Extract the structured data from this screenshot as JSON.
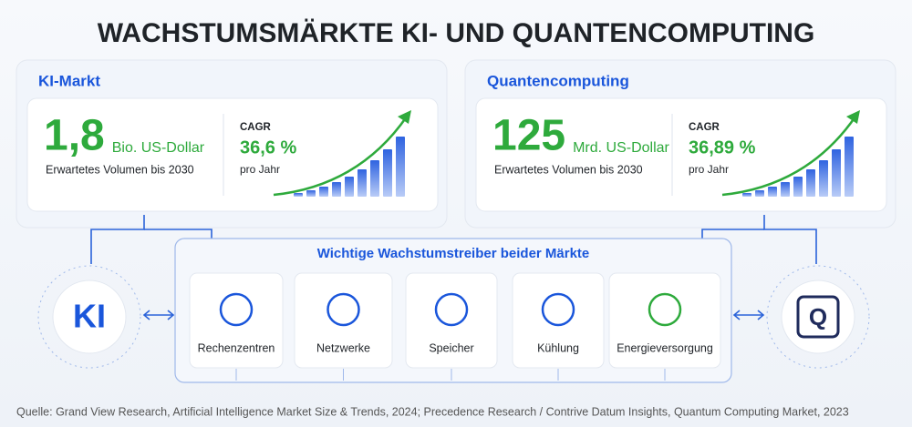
{
  "title": "WACHSTUMSMÄRKTE KI- UND QUANTENCOMPUTING",
  "markets": [
    {
      "name": "KI-Markt",
      "value": "1,8",
      "unit": "Bio. US-Dollar",
      "description": "Erwartetes Volumen bis 2030",
      "cagr_label": "CAGR",
      "cagr": "36,6 %",
      "cagr_note": "pro Jahr",
      "badge": "KI"
    },
    {
      "name": "Quantencomputing",
      "value": "125",
      "unit": "Mrd. US-Dollar",
      "description": "Erwartetes Volumen bis 2030",
      "cagr_label": "CAGR",
      "cagr": "36,89 %",
      "cagr_note": "pro Jahr",
      "badge": "Q"
    }
  ],
  "drivers": {
    "title": "Wichtige Wachstumstreiber beider Märkte",
    "items": [
      "Rechenzentren",
      "Netzwerke",
      "Speicher",
      "Kühlung",
      "Energieversorgung"
    ]
  },
  "source": "Quelle: Grand View Research, Artificial Intelligence Market Size & Trends, 2024; Precedence Research / Contrive Datum Insights, Quantum Computing Market, 2023"
}
